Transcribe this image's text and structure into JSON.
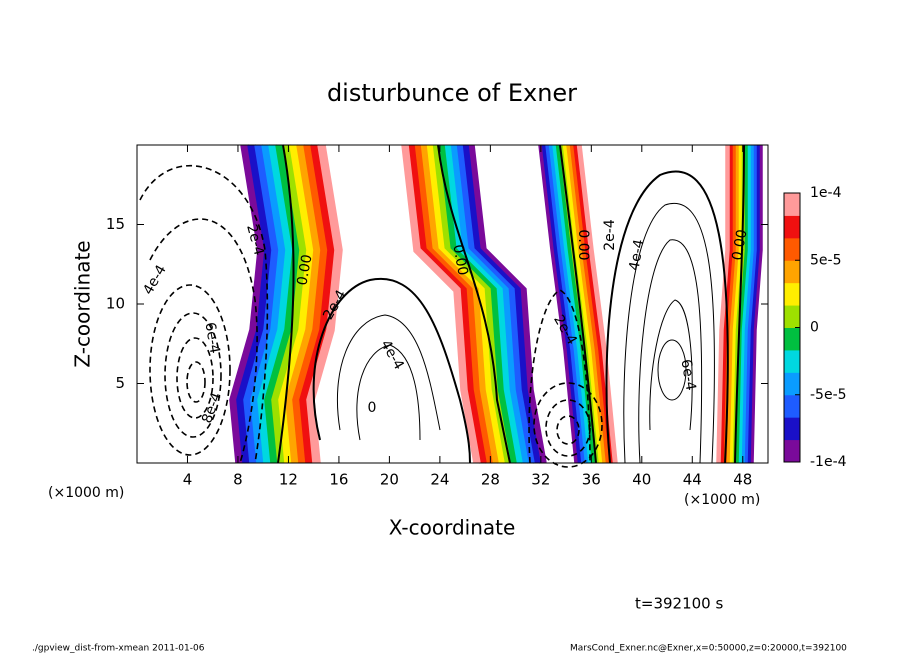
{
  "chart_data": {
    "type": "contour",
    "title": "disturbunce of Exner",
    "x_label": "X-coordinate",
    "y_label": "Z-coordinate",
    "x_unit": "(×1000 m)",
    "y_unit": "(×1000 m)",
    "xlim": [
      0,
      50
    ],
    "xticks": [
      4,
      8,
      12,
      16,
      20,
      24,
      28,
      32,
      36,
      40,
      44,
      48
    ],
    "ylim": [
      0,
      20
    ],
    "yticks": [
      5,
      10,
      15
    ],
    "colorbar": {
      "lim": [
        -0.0001,
        0.0001
      ],
      "ticks": [
        {
          "value": 0.0001,
          "label": "1e-4"
        },
        {
          "value": 5e-05,
          "label": "5e-5"
        },
        0,
        {
          "value": -5e-05,
          "label": "-5e-5"
        },
        {
          "value": -0.0001,
          "label": "-1e-4"
        }
      ],
      "colors": [
        "#7a0a9a",
        "#1a10c8",
        "#1e5cff",
        "#0a9cff",
        "#00d8e0",
        "#00c040",
        "#9ee000",
        "#ffee00",
        "#ffa400",
        "#ff5a00",
        "#f01010",
        "#ff9a9a"
      ]
    },
    "contour_labels": [
      "2e-4",
      "4e-4",
      "6e-4",
      "8e-4",
      "0.00",
      "2e-4",
      "4e-4",
      "0",
      "0.00",
      "0.00",
      "2e-4",
      "4e-4",
      "2e-4",
      "6e-4",
      "0.00"
    ],
    "time_label": "t=392100 s",
    "footer_left": "./gpview_dist-from-xmean  2011-01-06",
    "footer_right": "MarsCond_Exner.nc@Exner,x=0:50000,z=0:20000,t=392100"
  }
}
